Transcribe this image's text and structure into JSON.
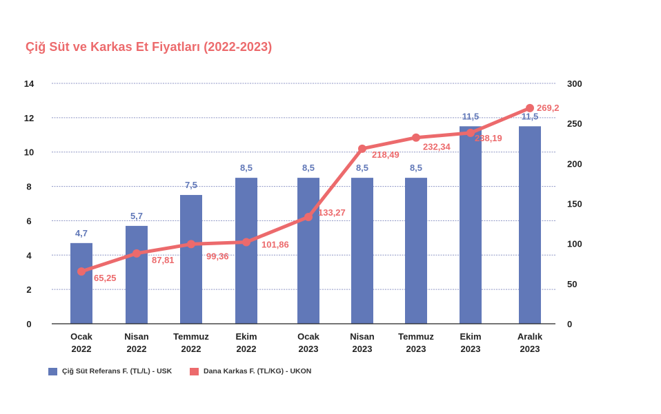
{
  "chart_data": {
    "type": "bar",
    "title": "Çiğ Süt ve Karkas Et Fiyatları (2022-2023)",
    "categories": [
      [
        "Ocak",
        "2022"
      ],
      [
        "Nisan",
        "2022"
      ],
      [
        "Temmuz",
        "2022"
      ],
      [
        "Ekim",
        "2022"
      ],
      [
        "Ocak",
        "2023"
      ],
      [
        "Nisan",
        "2023"
      ],
      [
        "Temmuz",
        "2023"
      ],
      [
        "Ekim",
        "2023"
      ],
      [
        "Aralık",
        "2023"
      ]
    ],
    "left_axis": {
      "ylim": [
        0,
        14
      ],
      "ticks": [
        "0",
        "2",
        "4",
        "6",
        "8",
        "10",
        "12",
        "14"
      ]
    },
    "right_axis": {
      "ylim": [
        0,
        300
      ],
      "ticks": [
        "0",
        "50",
        "100",
        "150",
        "200",
        "250",
        "300"
      ]
    },
    "grid": true,
    "series": [
      {
        "name": "Çiğ Süt Referans F. (TL/L) - USK",
        "type": "bar",
        "axis": "left",
        "color": "#6178b8",
        "label_color": "#6178b8",
        "values": [
          4.7,
          5.7,
          7.5,
          8.5,
          8.5,
          8.5,
          8.5,
          11.5,
          11.5
        ],
        "labels": [
          "4,7",
          "5,7",
          "7,5",
          "8,5",
          "8,5",
          "8,5",
          "8,5",
          "11,5",
          "11,5"
        ]
      },
      {
        "name": "Dana Karkas F. (TL/KG) - UKON",
        "type": "line",
        "axis": "right",
        "color": "#ec6a6c",
        "values": [
          65.25,
          87.81,
          99.36,
          101.86,
          133.27,
          218.49,
          232.34,
          238.19,
          269.2
        ],
        "labels": [
          "65,25",
          "87,81",
          "99,36",
          "101,86",
          "133,27",
          "218,49",
          "232,34",
          "238,19",
          "269,2"
        ]
      }
    ],
    "legend": {
      "position": "bottom-left",
      "items": [
        {
          "label": "Çiğ Süt Referans F. (TL/L) - USK",
          "color": "#6178b8"
        },
        {
          "label": "Dana Karkas F. (TL/KG) - UKON",
          "color": "#ec6a6c"
        }
      ]
    }
  }
}
